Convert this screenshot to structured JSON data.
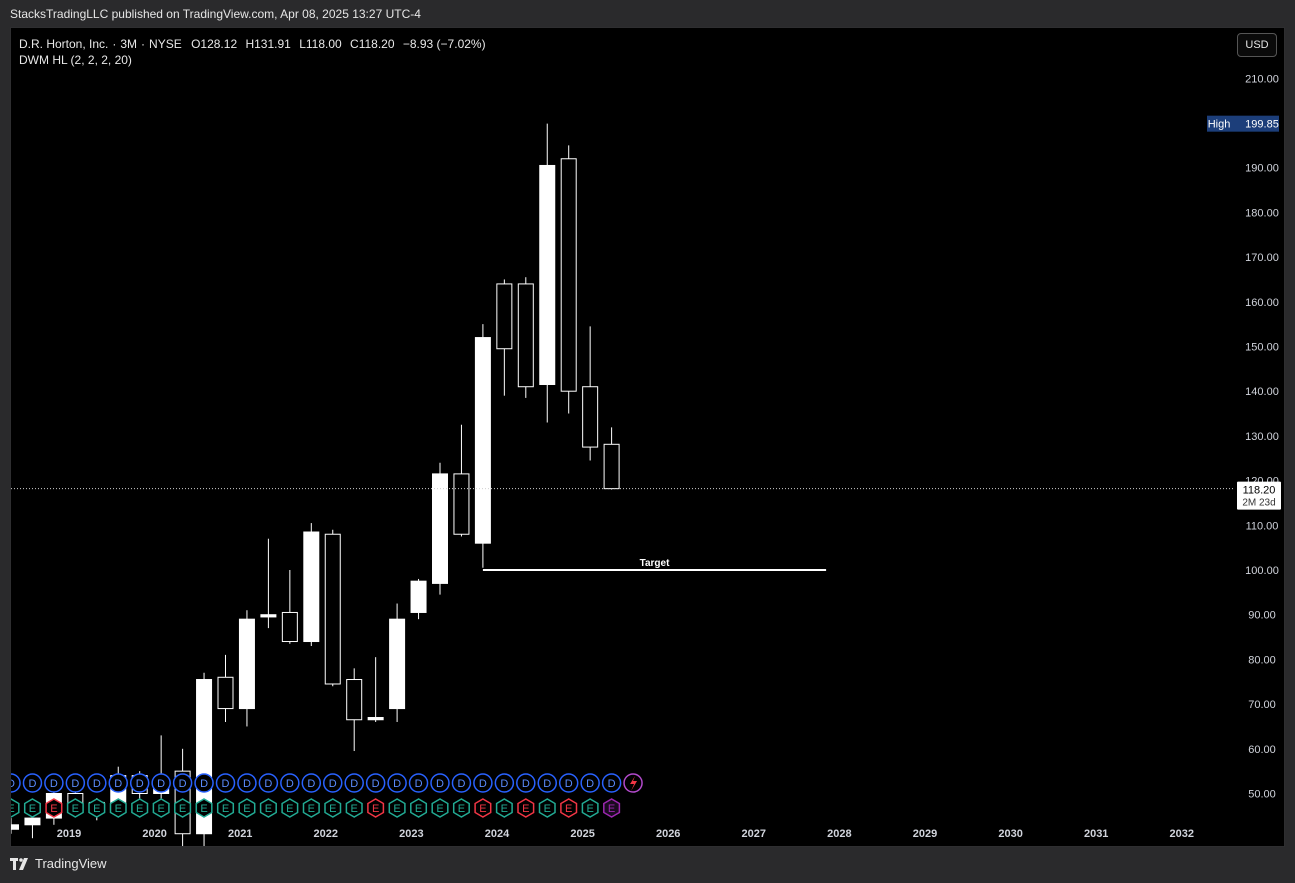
{
  "publisher": {
    "text": "StacksTradingLLC published on TradingView.com, Apr 08, 2025 13:27 UTC-4"
  },
  "legend": {
    "symbol": "D.R. Horton, Inc.",
    "interval": "3M",
    "exchange": "NYSE",
    "open": "O128.12",
    "high": "H131.91",
    "low": "L118.00",
    "close": "C118.20",
    "change": "−8.93 (−7.02%)",
    "indicator": "DWM HL (2, 2, 2, 20)"
  },
  "currency_button": "USD",
  "footer": {
    "brand": "TradingView",
    "logo_icon": "tradingview-logo-icon"
  },
  "chart_data": {
    "type": "candlestick",
    "interval": "3M",
    "ylim": [
      43,
      218
    ],
    "y_ticks": [
      50,
      60,
      70,
      80,
      90,
      100,
      110,
      120,
      130,
      140,
      150,
      160,
      170,
      180,
      190,
      200,
      210
    ],
    "y_tick_labels": [
      "50.00",
      "60.00",
      "70.00",
      "80.00",
      "90.00",
      "100.00",
      "110.00",
      "120.00",
      "130.00",
      "140.00",
      "150.00",
      "160.00",
      "170.00",
      "180.00",
      "190.00",
      "",
      "210.00"
    ],
    "x_labels": [
      "2019",
      "2020",
      "2021",
      "2022",
      "2023",
      "2024",
      "2025",
      "2026",
      "2027",
      "2028",
      "2029",
      "2030",
      "2031",
      "2032"
    ],
    "candles": [
      {
        "o": 42.0,
        "h": 44.5,
        "l": 41.0,
        "c": 43.0
      },
      {
        "o": 43.0,
        "h": 46.0,
        "l": 40.0,
        "c": 44.5
      },
      {
        "o": 44.5,
        "h": 52.0,
        "l": 43.0,
        "c": 50.0
      },
      {
        "o": 50.0,
        "h": 53.0,
        "l": 45.0,
        "c": 47.0
      },
      {
        "o": 47.0,
        "h": 49.0,
        "l": 44.0,
        "c": 48.0
      },
      {
        "o": 48.0,
        "h": 56.0,
        "l": 47.0,
        "c": 54.0
      },
      {
        "o": 54.0,
        "h": 55.0,
        "l": 48.0,
        "c": 50.0
      },
      {
        "o": 50.0,
        "h": 63.0,
        "l": 47.0,
        "c": 53.0
      },
      {
        "o": 55.0,
        "h": 60.0,
        "l": 38.0,
        "c": 41.0
      },
      {
        "o": 41.0,
        "h": 77.0,
        "l": 38.0,
        "c": 75.5
      },
      {
        "o": 76.0,
        "h": 81.0,
        "l": 66.0,
        "c": 69.0
      },
      {
        "o": 69.0,
        "h": 91.0,
        "l": 65.0,
        "c": 89.0
      },
      {
        "o": 89.5,
        "h": 107.0,
        "l": 87.0,
        "c": 90.0
      },
      {
        "o": 90.5,
        "h": 100.0,
        "l": 83.5,
        "c": 84.0
      },
      {
        "o": 84.0,
        "h": 110.5,
        "l": 83.0,
        "c": 108.5
      },
      {
        "o": 108.0,
        "h": 109.0,
        "l": 74.0,
        "c": 74.5
      },
      {
        "o": 75.5,
        "h": 78.0,
        "l": 59.5,
        "c": 66.5
      },
      {
        "o": 66.5,
        "h": 80.5,
        "l": 66.0,
        "c": 67.0
      },
      {
        "o": 69.0,
        "h": 92.5,
        "l": 66.0,
        "c": 89.0
      },
      {
        "o": 90.5,
        "h": 98.0,
        "l": 89.0,
        "c": 97.5
      },
      {
        "o": 97.0,
        "h": 124.0,
        "l": 94.5,
        "c": 121.5
      },
      {
        "o": 121.5,
        "h": 132.5,
        "l": 107.5,
        "c": 108.0
      },
      {
        "o": 106.0,
        "h": 155.0,
        "l": 100.5,
        "c": 152.0
      },
      {
        "o": 164.0,
        "h": 165.0,
        "l": 139.0,
        "c": 149.5
      },
      {
        "o": 164.0,
        "h": 165.5,
        "l": 138.5,
        "c": 141.0
      },
      {
        "o": 141.5,
        "h": 199.85,
        "l": 133.0,
        "c": 190.5
      },
      {
        "o": 192.0,
        "h": 195.0,
        "l": 135.0,
        "c": 140.0
      },
      {
        "o": 141.0,
        "h": 154.5,
        "l": 124.5,
        "c": 127.5
      },
      {
        "o": 128.12,
        "h": 131.91,
        "l": 118.0,
        "c": 118.2
      }
    ],
    "events": {
      "dividends": 29,
      "dividend_label": "D",
      "earnings_label": "E",
      "earnings": [
        "g",
        "g",
        "r",
        "g",
        "g",
        "g",
        "g",
        "g",
        "g",
        "g",
        "g",
        "g",
        "g",
        "g",
        "g",
        "g",
        "g",
        "r",
        "g",
        "g",
        "g",
        "g",
        "r",
        "g",
        "r",
        "g",
        "r",
        "g",
        "p"
      ]
    },
    "annotations": {
      "target_label": "Target",
      "target_value": 100.0,
      "target_from_index": 22,
      "target_to_index": 38,
      "high_label": "High",
      "high_value": "199.85",
      "last_price": "118.20",
      "countdown": "2M 23d"
    },
    "colors": {
      "candle_up": "#ffffff",
      "candle_down": "#000000",
      "wick": "#ffffff",
      "earnings_green": "#22ab94",
      "earnings_red": "#f23645",
      "earnings_purple": "#9c27b0",
      "dividend_blue": "#2962ff",
      "high_badge": "#1c3e7a"
    }
  }
}
